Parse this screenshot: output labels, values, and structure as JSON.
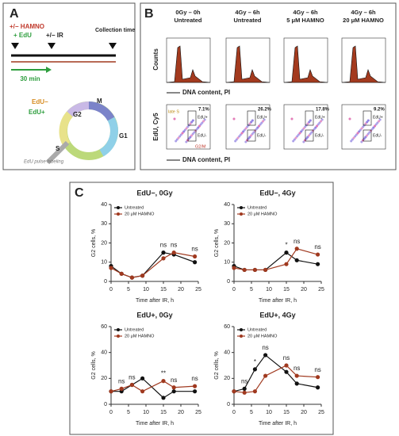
{
  "panel_a": {
    "label": "A",
    "hamno": "+/− HAMNO",
    "edu": "+ EdU",
    "ir": "+/− IR",
    "collection": "Collection time",
    "pulse": "30 min",
    "edu_neg": "EdU−",
    "edu_pos": "EdU+",
    "phases": [
      "G2",
      "M",
      "G1",
      "S"
    ],
    "note": "EdU pulse labeling"
  },
  "panel_b": {
    "label": "B",
    "columns": [
      [
        "0Gy – 0h",
        "Untreated"
      ],
      [
        "4Gy – 6h",
        "Untreated"
      ],
      [
        "4Gy – 6h",
        "5 μM HAMNO"
      ],
      [
        "4Gy – 6h",
        "20 μM HAMNO"
      ]
    ],
    "counts": "Counts",
    "dna": "DNA content, PI",
    "edu_axis": "EdU, Cy5",
    "percents": [
      "7.1%",
      "26.2%",
      "17.8%",
      "9.2%"
    ],
    "late_s": "late S",
    "g2m": "G2/M",
    "gate_pos": "EdU+",
    "gate_neg": "EdU-"
  },
  "panel_c": {
    "label": "C"
  },
  "chart_data": [
    {
      "type": "line",
      "title": "EdU−, 0Gy",
      "xlabel": "Time after IR, h",
      "ylabel": "G2 cells, %",
      "x": [
        0,
        3,
        6,
        9,
        15,
        18,
        24
      ],
      "xlim": [
        0,
        25
      ],
      "xticks": [
        0,
        5,
        10,
        15,
        20,
        25
      ],
      "ylim": [
        0,
        40
      ],
      "yticks": [
        0,
        10,
        20,
        30,
        40
      ],
      "series": [
        {
          "name": "Untreated",
          "color": "#111111",
          "values": [
            8,
            4,
            2,
            3,
            15,
            14,
            10
          ]
        },
        {
          "name": "20 μM HAMNO",
          "color": "#a0391f",
          "values": [
            7,
            4,
            2,
            3,
            12,
            15,
            13
          ]
        }
      ],
      "annotations": [
        {
          "text": "ns",
          "x": 15
        },
        {
          "text": "ns",
          "x": 18
        },
        {
          "text": "ns",
          "x": 24
        }
      ]
    },
    {
      "type": "line",
      "title": "EdU−, 4Gy",
      "xlabel": "Time after IR, h",
      "ylabel": "G2 cells, %",
      "x": [
        0,
        3,
        6,
        9,
        15,
        18,
        24
      ],
      "xlim": [
        0,
        25
      ],
      "xticks": [
        0,
        5,
        10,
        15,
        20,
        25
      ],
      "ylim": [
        0,
        40
      ],
      "yticks": [
        0,
        10,
        20,
        30,
        40
      ],
      "series": [
        {
          "name": "Untreated",
          "color": "#111111",
          "values": [
            8,
            6,
            6,
            6,
            15,
            11,
            9
          ]
        },
        {
          "name": "20 μM HAMNO",
          "color": "#a0391f",
          "values": [
            7,
            6,
            6,
            6,
            9,
            17,
            14
          ]
        }
      ],
      "annotations": [
        {
          "text": "*",
          "x": 15
        },
        {
          "text": "ns",
          "x": 18
        },
        {
          "text": "ns",
          "x": 24
        }
      ]
    },
    {
      "type": "line",
      "title": "EdU+, 0Gy",
      "xlabel": "Time after IR, h",
      "ylabel": "G2 cells, %",
      "x": [
        0,
        3,
        6,
        9,
        15,
        18,
        24
      ],
      "xlim": [
        0,
        25
      ],
      "xticks": [
        0,
        5,
        10,
        15,
        20,
        25
      ],
      "ylim": [
        0,
        60
      ],
      "yticks": [
        0,
        20,
        40,
        60
      ],
      "series": [
        {
          "name": "Untreated",
          "color": "#111111",
          "values": [
            10,
            10,
            15,
            20,
            5,
            10,
            10
          ]
        },
        {
          "name": "20 μM HAMNO",
          "color": "#a0391f",
          "values": [
            10,
            12,
            15,
            10,
            18,
            13,
            14
          ]
        }
      ],
      "annotations": [
        {
          "text": "ns",
          "x": 3
        },
        {
          "text": "ns",
          "x": 6
        },
        {
          "text": "**",
          "x": 15
        },
        {
          "text": "ns",
          "x": 18
        },
        {
          "text": "ns",
          "x": 24
        }
      ]
    },
    {
      "type": "line",
      "title": "EdU+, 4Gy",
      "xlabel": "Time after IR, h",
      "ylabel": "G2 cells, %",
      "x": [
        0,
        3,
        6,
        9,
        15,
        18,
        24
      ],
      "xlim": [
        0,
        25
      ],
      "xticks": [
        0,
        5,
        10,
        15,
        20,
        25
      ],
      "ylim": [
        0,
        60
      ],
      "yticks": [
        0,
        20,
        40,
        60
      ],
      "series": [
        {
          "name": "Untreated",
          "color": "#111111",
          "values": [
            10,
            12,
            27,
            38,
            25,
            16,
            13
          ]
        },
        {
          "name": "20 μM HAMNO",
          "color": "#a0391f",
          "values": [
            10,
            9,
            10,
            22,
            30,
            22,
            21
          ]
        }
      ],
      "annotations": [
        {
          "text": "ns",
          "x": 3
        },
        {
          "text": "*",
          "x": 6
        },
        {
          "text": "ns",
          "x": 9
        },
        {
          "text": "ns",
          "x": 15
        },
        {
          "text": "ns",
          "x": 18
        },
        {
          "text": "ns",
          "x": 24
        }
      ]
    }
  ]
}
